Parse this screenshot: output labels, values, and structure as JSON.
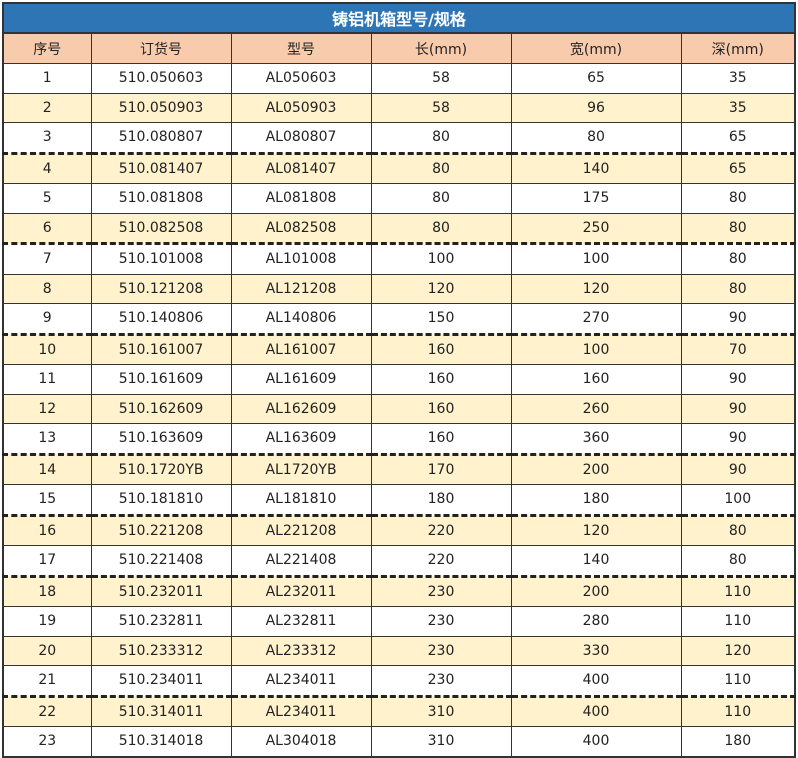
{
  "header": {
    "title": "铸铝机箱型号/规格"
  },
  "table": {
    "columns": [
      "序号",
      "订货号",
      "型号",
      "长(mm)",
      "宽(mm)",
      "深(mm)"
    ],
    "rows": [
      [
        "1",
        "510.050603",
        "AL050603",
        "58",
        "65",
        "35"
      ],
      [
        "2",
        "510.050903",
        "AL050903",
        "58",
        "96",
        "35"
      ],
      [
        "3",
        "510.080807",
        "AL080807",
        "80",
        "80",
        "65"
      ],
      [
        "4",
        "510.081407",
        "AL081407",
        "80",
        "140",
        "65"
      ],
      [
        "5",
        "510.081808",
        "AL081808",
        "80",
        "175",
        "80"
      ],
      [
        "6",
        "510.082508",
        "AL082508",
        "80",
        "250",
        "80"
      ],
      [
        "7",
        "510.101008",
        "AL101008",
        "100",
        "100",
        "80"
      ],
      [
        "8",
        "510.121208",
        "AL121208",
        "120",
        "120",
        "80"
      ],
      [
        "9",
        "510.140806",
        "AL140806",
        "150",
        "270",
        "90"
      ],
      [
        "10",
        "510.161007",
        "AL161007",
        "160",
        "100",
        "70"
      ],
      [
        "11",
        "510.161609",
        "AL161609",
        "160",
        "160",
        "90"
      ],
      [
        "12",
        "510.162609",
        "AL162609",
        "160",
        "260",
        "90"
      ],
      [
        "13",
        "510.163609",
        "AL163609",
        "160",
        "360",
        "90"
      ],
      [
        "14",
        "510.1720YB",
        "AL1720YB",
        "170",
        "200",
        "90"
      ],
      [
        "15",
        "510.181810",
        "AL181810",
        "180",
        "180",
        "100"
      ],
      [
        "16",
        "510.221208",
        "AL221208",
        "220",
        "120",
        "80"
      ],
      [
        "17",
        "510.221408",
        "AL221408",
        "220",
        "140",
        "80"
      ],
      [
        "18",
        "510.232011",
        "AL232011",
        "230",
        "200",
        "110"
      ],
      [
        "19",
        "510.232811",
        "AL232811",
        "230",
        "280",
        "110"
      ],
      [
        "20",
        "510.233312",
        "AL233312",
        "230",
        "330",
        "120"
      ],
      [
        "21",
        "510.234011",
        "AL234011",
        "230",
        "400",
        "110"
      ],
      [
        "22",
        "510.314011",
        "AL234011",
        "310",
        "400",
        "110"
      ],
      [
        "23",
        "510.314018",
        "AL304018",
        "310",
        "400",
        "180"
      ]
    ]
  }
}
